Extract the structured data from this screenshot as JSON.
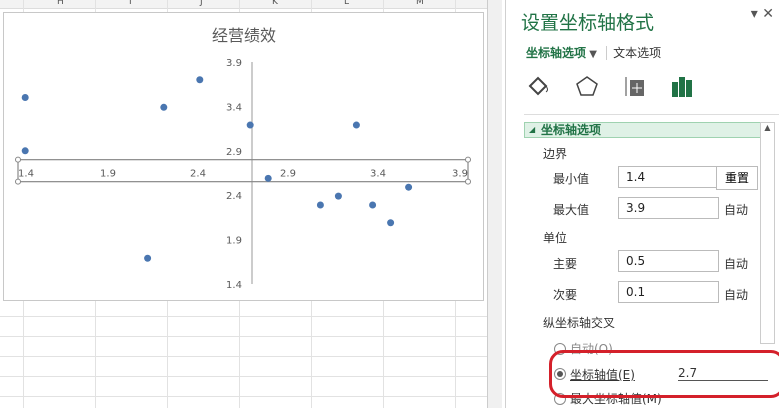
{
  "sheet": {
    "columns": [
      "H",
      "I",
      "J",
      "K",
      "L",
      "M"
    ]
  },
  "chart_data": {
    "type": "scatter",
    "title": "经营绩效",
    "x": [
      1.44,
      1.44,
      2.21,
      2.41,
      2.69,
      2.79,
      2.12,
      3.08,
      3.18,
      3.28,
      3.37,
      3.47,
      3.57
    ],
    "y": [
      3.5,
      2.9,
      3.39,
      3.7,
      3.19,
      2.59,
      1.69,
      2.29,
      2.39,
      3.19,
      2.29,
      2.09,
      2.49
    ],
    "xlim": [
      1.4,
      3.9
    ],
    "ylim": [
      1.4,
      3.9
    ],
    "xticks": [
      "1.4",
      "1.9",
      "2.4",
      "2.9",
      "3.4",
      "3.9"
    ],
    "yticks": [
      "3.9",
      "3.4",
      "2.9",
      "2.4",
      "1.9",
      "1.4"
    ],
    "vertical_axis_crosses_x": 2.7,
    "horizontal_axis_crosses_y": 2.8,
    "color": "#4a76b0",
    "grid": false,
    "selected_axis": "horizontal"
  },
  "panel": {
    "title": "设置坐标轴格式",
    "tab_axis": "坐标轴选项",
    "tab_text": "文本选项",
    "section": "坐标轴选项",
    "bounds": "边界",
    "min_label": "最小值",
    "min_value": "1.4",
    "reset": "重置",
    "max_label": "最大值",
    "max_value": "3.9",
    "auto": "自动",
    "units": "单位",
    "major_label": "主要",
    "major_value": "0.5",
    "minor_label": "次要",
    "minor_value": "0.1",
    "cross_label": "纵坐标轴交叉",
    "opt_auto": "自动(O)",
    "opt_value": "坐标轴值(E)",
    "opt_value_input": "2.7",
    "opt_max": "最大坐标轴值(M)",
    "accent": "#217346"
  }
}
